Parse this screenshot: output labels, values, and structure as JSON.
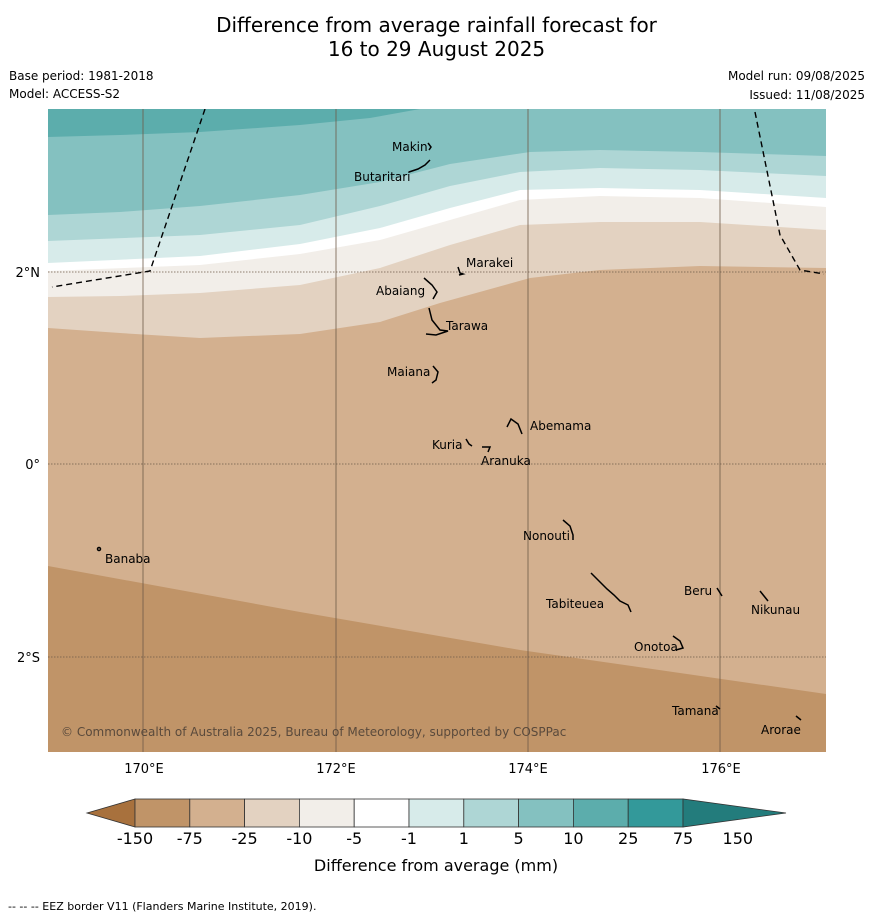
{
  "title_line1": "Difference from average rainfall forecast for",
  "title_line2": "16 to 29 August 2025",
  "base_period": "Base period: 1981-2018",
  "model": "Model: ACCESS-S2",
  "model_run": "Model run: 09/08/2025",
  "issued": "Issued: 11/08/2025",
  "copyright": "© Commonwealth of Australia 2025, Bureau of Meteorology, supported by COSPPac",
  "lat_ticks": [
    "2°N",
    "0°",
    "2°S"
  ],
  "lon_ticks": [
    "170°E",
    "172°E",
    "174°E",
    "176°E"
  ],
  "places": [
    "Makin",
    "Butaritari",
    "Marakei",
    "Abaiang",
    "Tarawa",
    "Maiana",
    "Abemama",
    "Kuria",
    "Aranuka",
    "Nonouti",
    "Banaba",
    "Tabiteuea",
    "Beru",
    "Nikunau",
    "Onotoa",
    "Tamana",
    "Arorae"
  ],
  "colorbar": {
    "labels": [
      "-150",
      "-75",
      "-25",
      "-10",
      "-5",
      "-1",
      "1",
      "5",
      "10",
      "25",
      "75",
      "150"
    ],
    "colors": [
      "#a8713d",
      "#c09468",
      "#d3b08f",
      "#e3d2c1",
      "#f2eee9",
      "#ffffff",
      "#d7ebea",
      "#aed6d5",
      "#84c1c0",
      "#5cadac",
      "#33999a",
      "#237c7c"
    ],
    "title": "Difference from average (mm)"
  },
  "footer": "--  --  -- EEZ border V11 (Flanders Marine Institute, 2019)."
}
